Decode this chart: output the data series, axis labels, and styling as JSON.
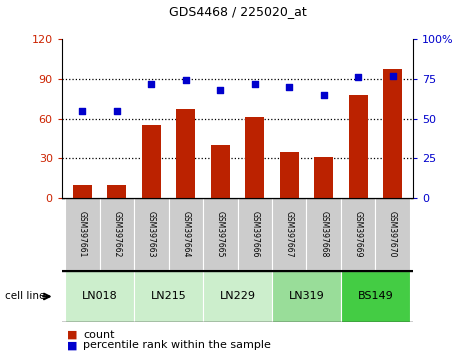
{
  "title": "GDS4468 / 225020_at",
  "samples": [
    "GSM397661",
    "GSM397662",
    "GSM397663",
    "GSM397664",
    "GSM397665",
    "GSM397666",
    "GSM397667",
    "GSM397668",
    "GSM397669",
    "GSM397670"
  ],
  "counts": [
    10,
    10,
    55,
    67,
    40,
    61,
    35,
    31,
    78,
    97
  ],
  "percentile_ranks": [
    55,
    55,
    72,
    74,
    68,
    72,
    70,
    65,
    76,
    77
  ],
  "left_ylim": [
    0,
    120
  ],
  "left_yticks": [
    0,
    30,
    60,
    90,
    120
  ],
  "right_ylim": [
    0,
    100
  ],
  "right_yticks": [
    0,
    25,
    50,
    75,
    100
  ],
  "right_yticklabels": [
    "0",
    "25",
    "50",
    "75",
    "100%"
  ],
  "bar_color": "#bb2200",
  "dot_color": "#0000cc",
  "left_tick_color": "#cc2200",
  "right_tick_color": "#0000cc",
  "cell_lines": [
    {
      "label": "LN018",
      "start": 0,
      "end": 2,
      "color": "#cceecc"
    },
    {
      "label": "LN215",
      "start": 2,
      "end": 4,
      "color": "#cceecc"
    },
    {
      "label": "LN229",
      "start": 4,
      "end": 6,
      "color": "#cceecc"
    },
    {
      "label": "LN319",
      "start": 6,
      "end": 8,
      "color": "#99dd99"
    },
    {
      "label": "BS149",
      "start": 8,
      "end": 10,
      "color": "#44cc44"
    }
  ],
  "sample_bg": "#cccccc",
  "grid_color": "black",
  "legend_count_label": "count",
  "legend_pct_label": "percentile rank within the sample"
}
